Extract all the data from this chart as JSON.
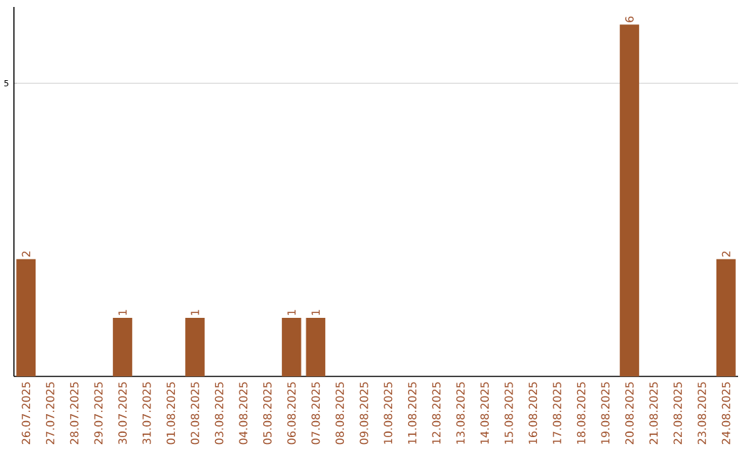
{
  "chart_data": {
    "type": "bar",
    "categories": [
      "26.07.2025",
      "27.07.2025",
      "28.07.2025",
      "29.07.2025",
      "30.07.2025",
      "31.07.2025",
      "01.08.2025",
      "02.08.2025",
      "03.08.2025",
      "04.08.2025",
      "05.08.2025",
      "06.08.2025",
      "07.08.2025",
      "08.08.2025",
      "09.08.2025",
      "10.08.2025",
      "11.08.2025",
      "12.08.2025",
      "13.08.2025",
      "14.08.2025",
      "15.08.2025",
      "16.08.2025",
      "17.08.2025",
      "18.08.2025",
      "19.08.2025",
      "20.08.2025",
      "21.08.2025",
      "22.08.2025",
      "23.08.2025",
      "24.08.2025"
    ],
    "values": [
      2,
      0,
      0,
      0,
      1,
      0,
      0,
      1,
      0,
      0,
      0,
      1,
      1,
      0,
      0,
      0,
      0,
      0,
      0,
      0,
      0,
      0,
      0,
      0,
      0,
      6,
      0,
      0,
      0,
      2
    ],
    "value_labels": [
      "2",
      null,
      null,
      null,
      "1",
      null,
      null,
      "1",
      null,
      null,
      null,
      "1",
      "1",
      null,
      null,
      null,
      null,
      null,
      null,
      null,
      null,
      null,
      null,
      null,
      null,
      "6",
      null,
      null,
      null,
      "2"
    ],
    "color": "#a0572a",
    "ylim": [
      0,
      6.3
    ],
    "yticks": [
      5
    ],
    "grid": "y"
  }
}
